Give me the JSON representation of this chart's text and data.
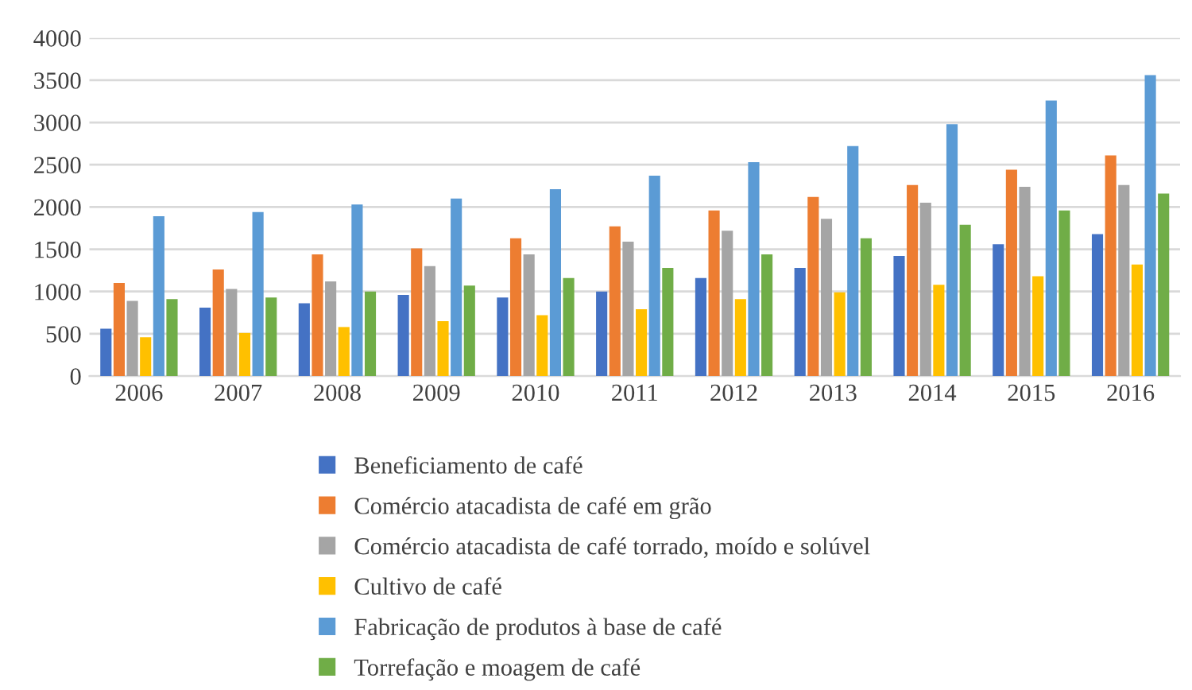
{
  "chart_data": {
    "type": "bar",
    "categories": [
      "2006",
      "2007",
      "2008",
      "2009",
      "2010",
      "2011",
      "2012",
      "2013",
      "2014",
      "2015",
      "2016"
    ],
    "series": [
      {
        "name": "Beneficiamento de café",
        "color": "#4472c4",
        "values": [
          560,
          810,
          860,
          960,
          930,
          1000,
          1160,
          1280,
          1420,
          1560,
          1680
        ]
      },
      {
        "name": "Comércio atacadista de café em grão",
        "color": "#ed7d31",
        "values": [
          1100,
          1260,
          1440,
          1510,
          1630,
          1770,
          1960,
          2120,
          2260,
          2440,
          2610
        ]
      },
      {
        "name": "Comércio atacadista de café torrado, moído e solúvel",
        "color": "#a5a5a5",
        "values": [
          890,
          1030,
          1120,
          1300,
          1440,
          1590,
          1720,
          1860,
          2050,
          2240,
          2260
        ]
      },
      {
        "name": "Cultivo de café",
        "color": "#ffc000",
        "values": [
          460,
          510,
          580,
          650,
          720,
          790,
          910,
          990,
          1080,
          1180,
          1320
        ]
      },
      {
        "name": "Fabricação de produtos à base de café",
        "color": "#5b9bd5",
        "values": [
          1890,
          1940,
          2030,
          2100,
          2210,
          2370,
          2530,
          2720,
          2980,
          3260,
          3560
        ]
      },
      {
        "name": "Torrefação e moagem de café",
        "color": "#70ad47",
        "values": [
          910,
          930,
          1000,
          1070,
          1160,
          1280,
          1440,
          1630,
          1790,
          1960,
          2160
        ]
      }
    ],
    "ylim": [
      0,
      4000
    ],
    "yticks": [
      0,
      500,
      1000,
      1500,
      2000,
      2500,
      3000,
      3500,
      4000
    ],
    "grid": "y",
    "legend": "bottom"
  }
}
